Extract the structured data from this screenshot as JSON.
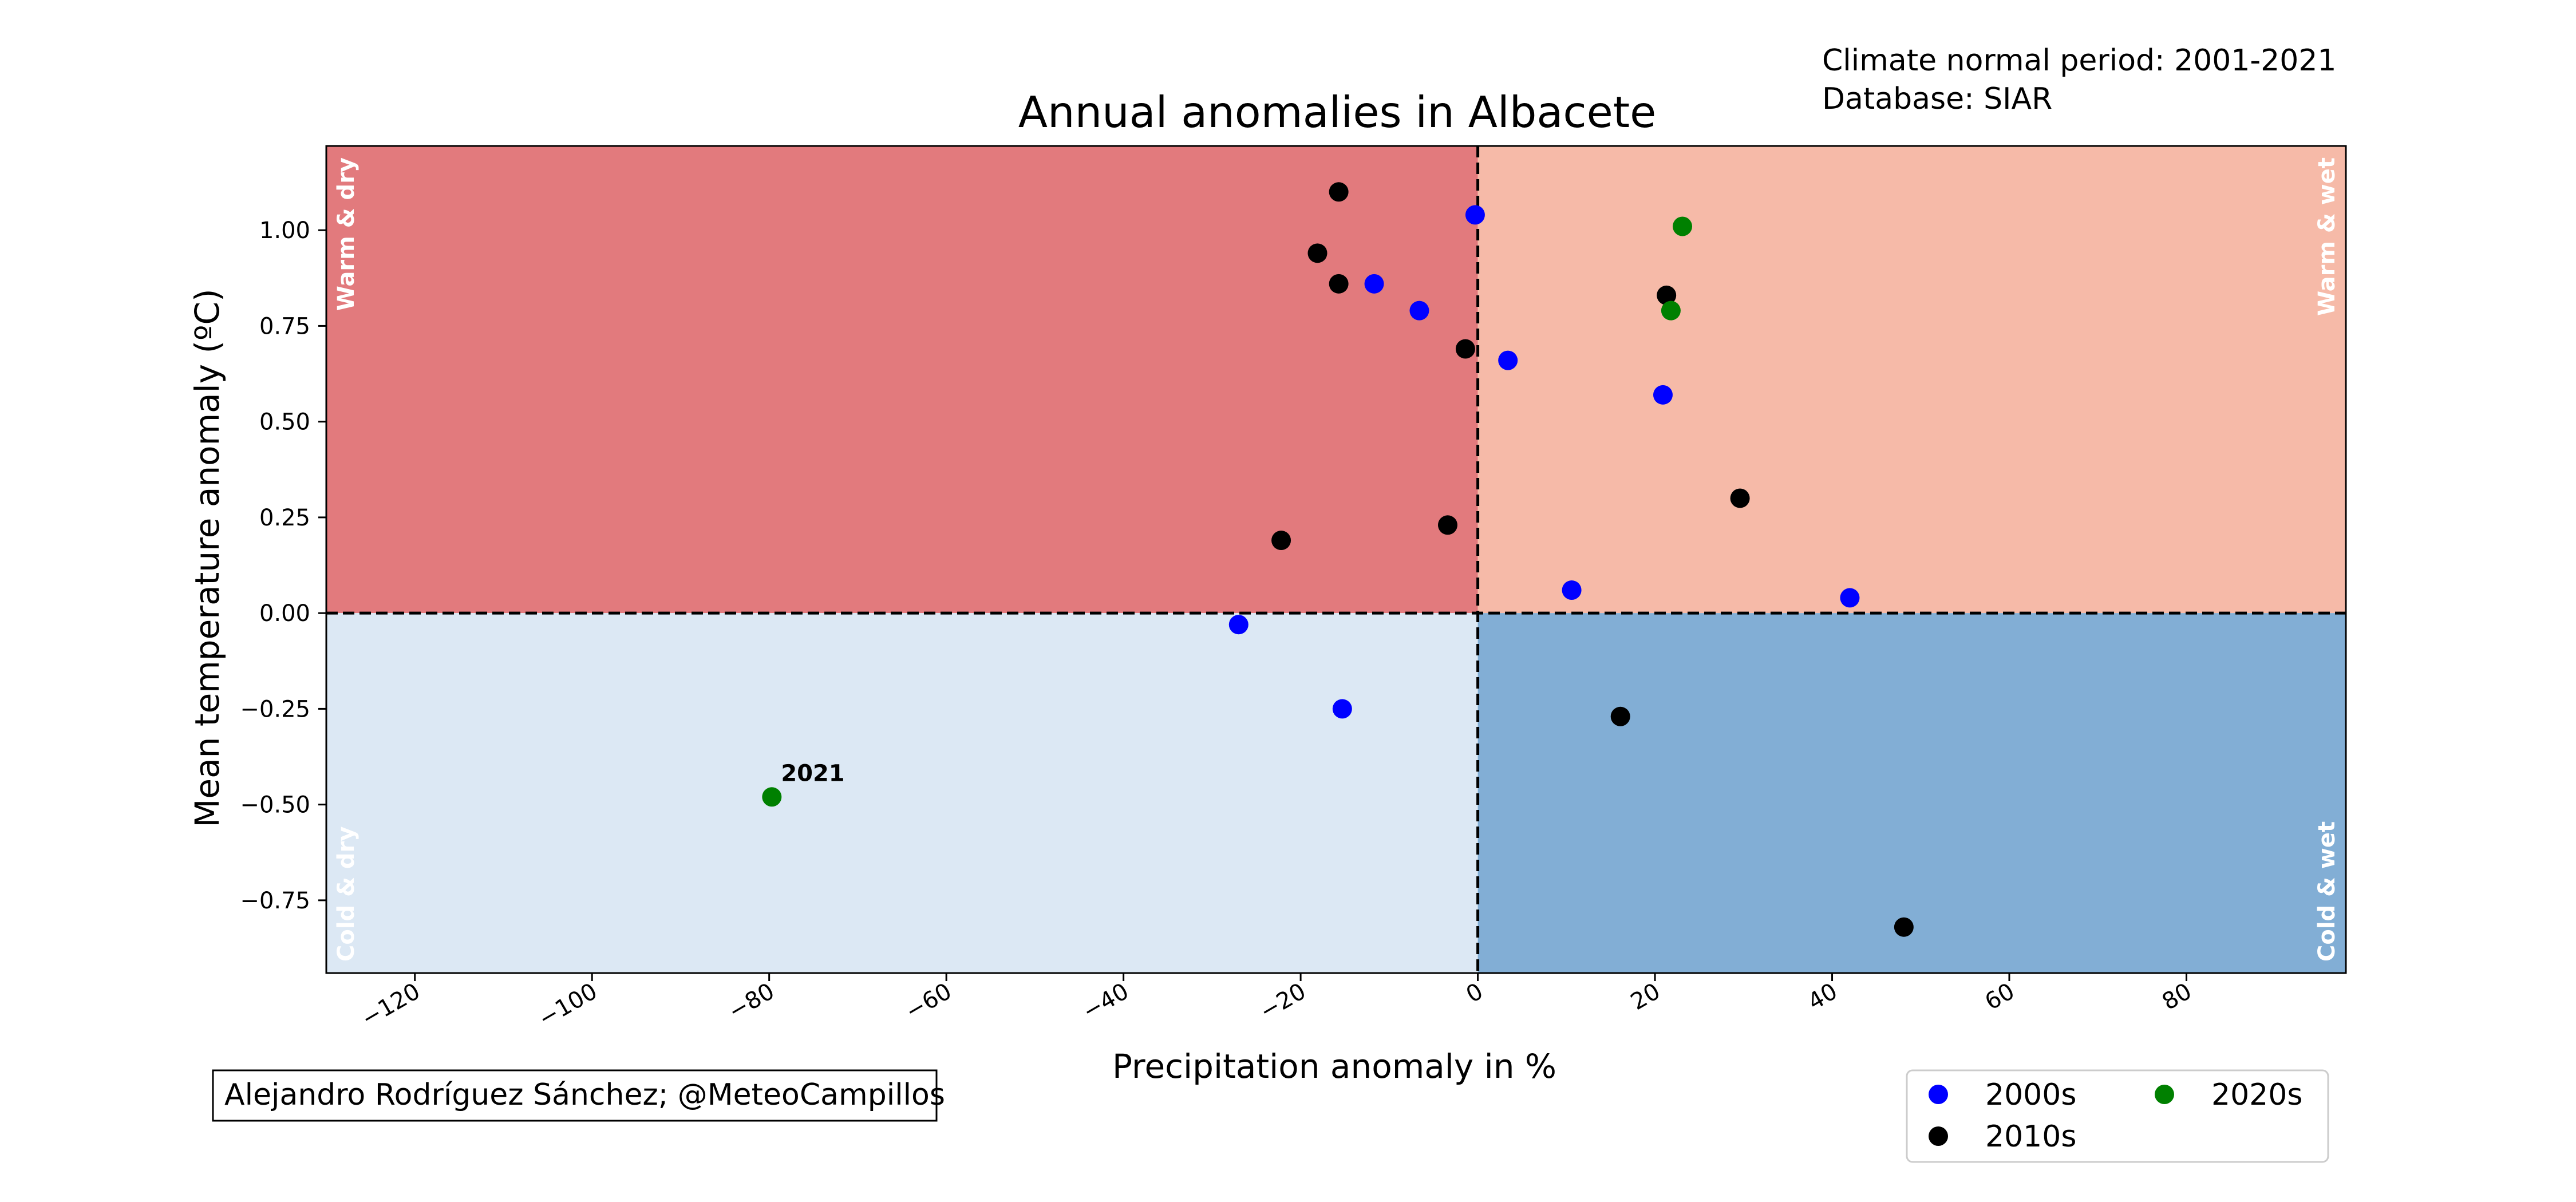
{
  "chart_data": {
    "type": "scatter",
    "title": "Annual anomalies in Albacete",
    "info_lines": [
      "Climate normal period: 2001-2021",
      "Database: SIAR"
    ],
    "xlabel": "Precipitation anomaly in %",
    "ylabel": "Mean temperature anomaly (ºC)",
    "xlim": [
      -130,
      98
    ],
    "ylim": [
      -0.94,
      1.22
    ],
    "xticks": [
      -120,
      -100,
      -80,
      -60,
      -40,
      -20,
      0,
      20,
      40,
      60,
      80
    ],
    "xtick_labels": [
      "−120",
      "−100",
      "−80",
      "−60",
      "−40",
      "−20",
      "0",
      "20",
      "40",
      "60",
      "80"
    ],
    "yticks": [
      -0.75,
      -0.5,
      -0.25,
      0.0,
      0.25,
      0.5,
      0.75,
      1.0
    ],
    "ytick_labels": [
      "−0.75",
      "−0.50",
      "−0.25",
      "0.00",
      "0.25",
      "0.50",
      "0.75",
      "1.00"
    ],
    "quadrants": [
      {
        "label": "Warm & dry",
        "color": "#e27a7d",
        "label_color": "#ffffff"
      },
      {
        "label": "Warm & wet",
        "color": "#f6baa8",
        "label_color": "#ffffff"
      },
      {
        "label": "Cold & dry",
        "color": "#dce8f4",
        "label_color": "#ffffff"
      },
      {
        "label": "Cold & wet",
        "color": "#82aed5",
        "label_color": "#ffffff"
      }
    ],
    "series": [
      {
        "name": "2000s",
        "color": "#0000ff",
        "points": [
          {
            "x": -0.3,
            "y": 1.04
          },
          {
            "x": -11.7,
            "y": 0.86
          },
          {
            "x": -6.6,
            "y": 0.79
          },
          {
            "x": 3.4,
            "y": 0.66
          },
          {
            "x": 20.9,
            "y": 0.57
          },
          {
            "x": 10.6,
            "y": 0.06
          },
          {
            "x": 42.0,
            "y": 0.04
          },
          {
            "x": -27.0,
            "y": -0.03
          },
          {
            "x": -15.3,
            "y": -0.25
          }
        ]
      },
      {
        "name": "2010s",
        "color": "#000000",
        "points": [
          {
            "x": -15.7,
            "y": 1.1
          },
          {
            "x": -18.1,
            "y": 0.94
          },
          {
            "x": -15.7,
            "y": 0.86
          },
          {
            "x": -1.4,
            "y": 0.69
          },
          {
            "x": 21.3,
            "y": 0.83
          },
          {
            "x": 29.6,
            "y": 0.3
          },
          {
            "x": -22.2,
            "y": 0.19
          },
          {
            "x": -3.4,
            "y": 0.23
          },
          {
            "x": 16.1,
            "y": -0.27
          },
          {
            "x": 48.1,
            "y": -0.82
          }
        ]
      },
      {
        "name": "2020s",
        "color": "#008000",
        "points": [
          {
            "x": 23.1,
            "y": 1.01
          },
          {
            "x": 21.8,
            "y": 0.79
          },
          {
            "x": -79.7,
            "y": -0.48
          }
        ]
      }
    ],
    "annotations": [
      {
        "text": "2021",
        "x": -79.7,
        "y": -0.48
      }
    ],
    "legend": {
      "placement": "lower-right-outside",
      "items": [
        {
          "label": "2000s",
          "color": "#0000ff"
        },
        {
          "label": "2010s",
          "color": "#000000"
        },
        {
          "label": "2020s",
          "color": "#008000"
        }
      ]
    },
    "credit": "Alejandro Rodríguez Sánchez; @MeteoCampillos",
    "reference_lines": {
      "x": 0,
      "y": 0,
      "style": "dashed"
    },
    "grid": false
  }
}
